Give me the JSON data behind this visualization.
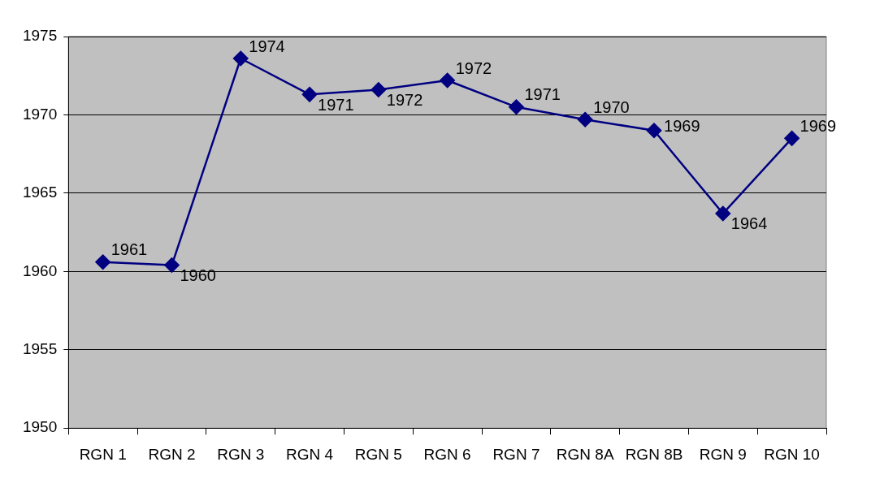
{
  "chart_data": {
    "type": "line",
    "categories": [
      "RGN 1",
      "RGN 2",
      "RGN 3",
      "RGN 4",
      "RGN 5",
      "RGN 6",
      "RGN 7",
      "RGN 8A",
      "RGN 8B",
      "RGN 9",
      "RGN 10"
    ],
    "series": [
      {
        "color": "#000080",
        "values": [
          1960.6,
          1960.4,
          1973.6,
          1971.3,
          1971.6,
          1972.2,
          1970.5,
          1969.7,
          1969.0,
          1963.7,
          1968.5
        ],
        "value_labels": [
          "1961",
          "1960",
          "1974",
          "1971",
          "1972",
          "1972",
          "1971",
          "1970",
          "1969",
          "1964",
          "1969"
        ]
      }
    ],
    "ylim": [
      1950,
      1975
    ],
    "yticks": [
      1950,
      1955,
      1960,
      1965,
      1970,
      1975
    ],
    "grid": "y",
    "marker": "diamond",
    "line_style": "solid",
    "legend": false
  }
}
